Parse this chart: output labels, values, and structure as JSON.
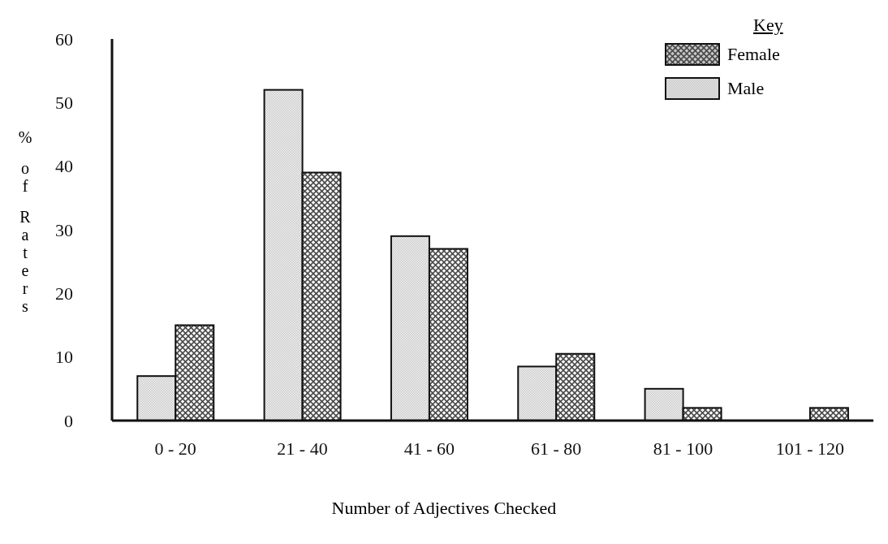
{
  "chart_data": {
    "type": "bar",
    "xlabel": "Number of Adjectives Checked",
    "ylabel": "% of Raters",
    "legend_title": "Key",
    "categories": [
      "0 - 20",
      "21 - 40",
      "41 - 60",
      "61 - 80",
      "81 - 100",
      "101 - 120"
    ],
    "series": [
      {
        "name": "Male",
        "color": "#c8c8c8",
        "values": [
          7,
          52,
          29,
          8.5,
          5,
          0
        ]
      },
      {
        "name": "Female",
        "color": "#4a4a4a",
        "values": [
          15,
          39,
          27,
          10.5,
          2,
          2
        ]
      }
    ],
    "ylim": [
      0,
      60
    ],
    "yticks": [
      0,
      10,
      20,
      30,
      40,
      50,
      60
    ],
    "grid": false,
    "legend": "top right"
  }
}
